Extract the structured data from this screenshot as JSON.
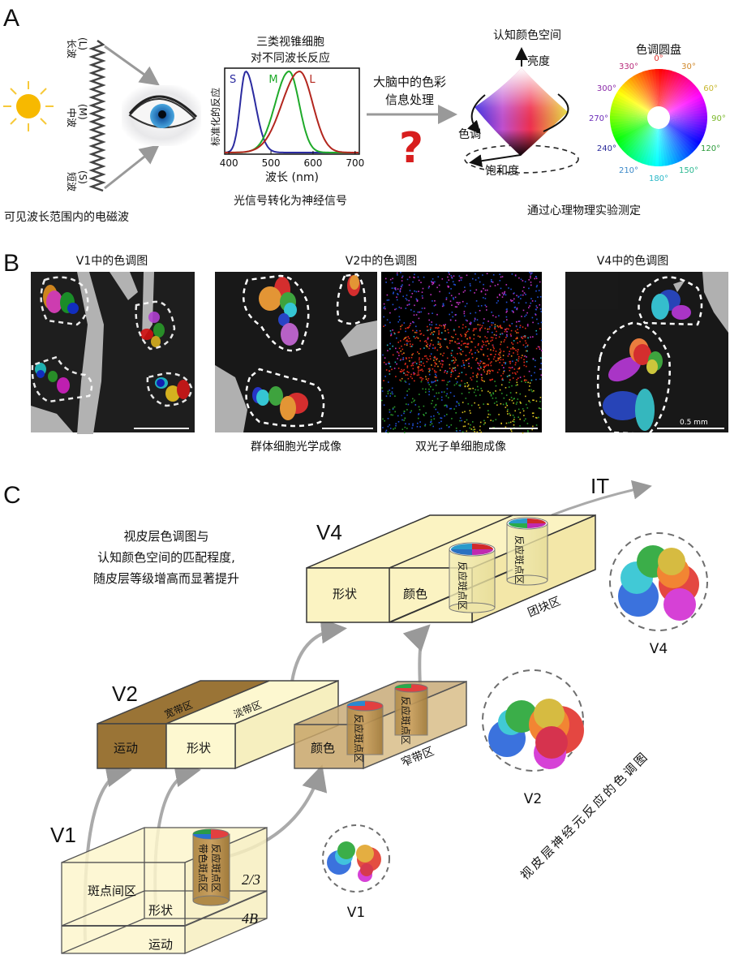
{
  "panels": {
    "a": "A",
    "b": "B",
    "c": "C"
  },
  "panel_a": {
    "waves": {
      "long": "长波",
      "long_tag": "(L)",
      "mid": "中波",
      "mid_tag": "(M)",
      "short": "短波",
      "short_tag": "(S)"
    },
    "em_caption": "可见波长范围内的电磁波",
    "cone_chart": {
      "title_line1": "三类视锥细胞",
      "title_line2": "对不同波长反应",
      "ylabel": "标准化的反应",
      "xlabel": "波长 (nm)",
      "xlim": [
        390,
        710
      ],
      "xticks": [
        "400",
        "500",
        "600",
        "700"
      ],
      "series": [
        {
          "name": "S",
          "peak_nm": 440,
          "color": "#2b2ba0"
        },
        {
          "name": "M",
          "peak_nm": 543,
          "color": "#1faa2a"
        },
        {
          "name": "L",
          "peak_nm": 568,
          "color": "#b3261e"
        }
      ]
    },
    "signal_caption": "光信号转化为神经信号",
    "brain_line1": "大脑中的色彩",
    "brain_line2": "信息处理",
    "question_mark": "?",
    "color_space": {
      "title": "认知颜色空间",
      "brightness": "亮度",
      "hue": "色调",
      "saturation": "饱和度"
    },
    "hue_wheel": {
      "title": "色调圆盘",
      "labels": [
        "0°",
        "30°",
        "60°",
        "90°",
        "120°",
        "150°",
        "180°",
        "210°",
        "240°",
        "270°",
        "300°",
        "330°"
      ],
      "label_colors": [
        "#e0302a",
        "#d0882a",
        "#c8b830",
        "#7ab82a",
        "#2a9a3a",
        "#2ab890",
        "#2ab8c8",
        "#3a88c8",
        "#2a2a9a",
        "#6a2ab8",
        "#8a2aa8",
        "#b82a7a"
      ]
    },
    "psychophysics_caption": "通过心理物理实验测定"
  },
  "panel_b": {
    "v1_title": "V1中的色调图",
    "v2_title": "V2中的色调图",
    "v4_title": "V4中的色调图",
    "optical_caption": "群体细胞光学成像",
    "twophoton_caption": "双光子单细胞成像",
    "scale_bar": "0.5 mm"
  },
  "panel_c": {
    "summary_line1": "视皮层色调图与",
    "summary_line2": "认知颜色空间的匹配程度,",
    "summary_line3": "随皮层等级增高而显著提升",
    "it_label": "IT",
    "v4": {
      "label": "V4",
      "shape": "形状",
      "color": "颜色",
      "blob_region": "团块区",
      "patch": "反应斑点区"
    },
    "v2": {
      "label": "V2",
      "motion": "运动",
      "shape": "形状",
      "color": "颜色",
      "thick": "宽带区",
      "pale": "淡带区",
      "thin": "窄带区",
      "patch": "反应斑点区"
    },
    "v1": {
      "label": "V1",
      "interblob": "斑点间区",
      "shape": "形状",
      "motion": "运动",
      "layer23": "2/3",
      "layer4b": "4B",
      "blob1": "带色斑点区",
      "blob2": "反应斑点区"
    },
    "cluster_labels": {
      "v1": "V1",
      "v2": "V2",
      "v4": "V4"
    },
    "diagonal_caption": "视皮层神经元反应的色调图"
  }
}
